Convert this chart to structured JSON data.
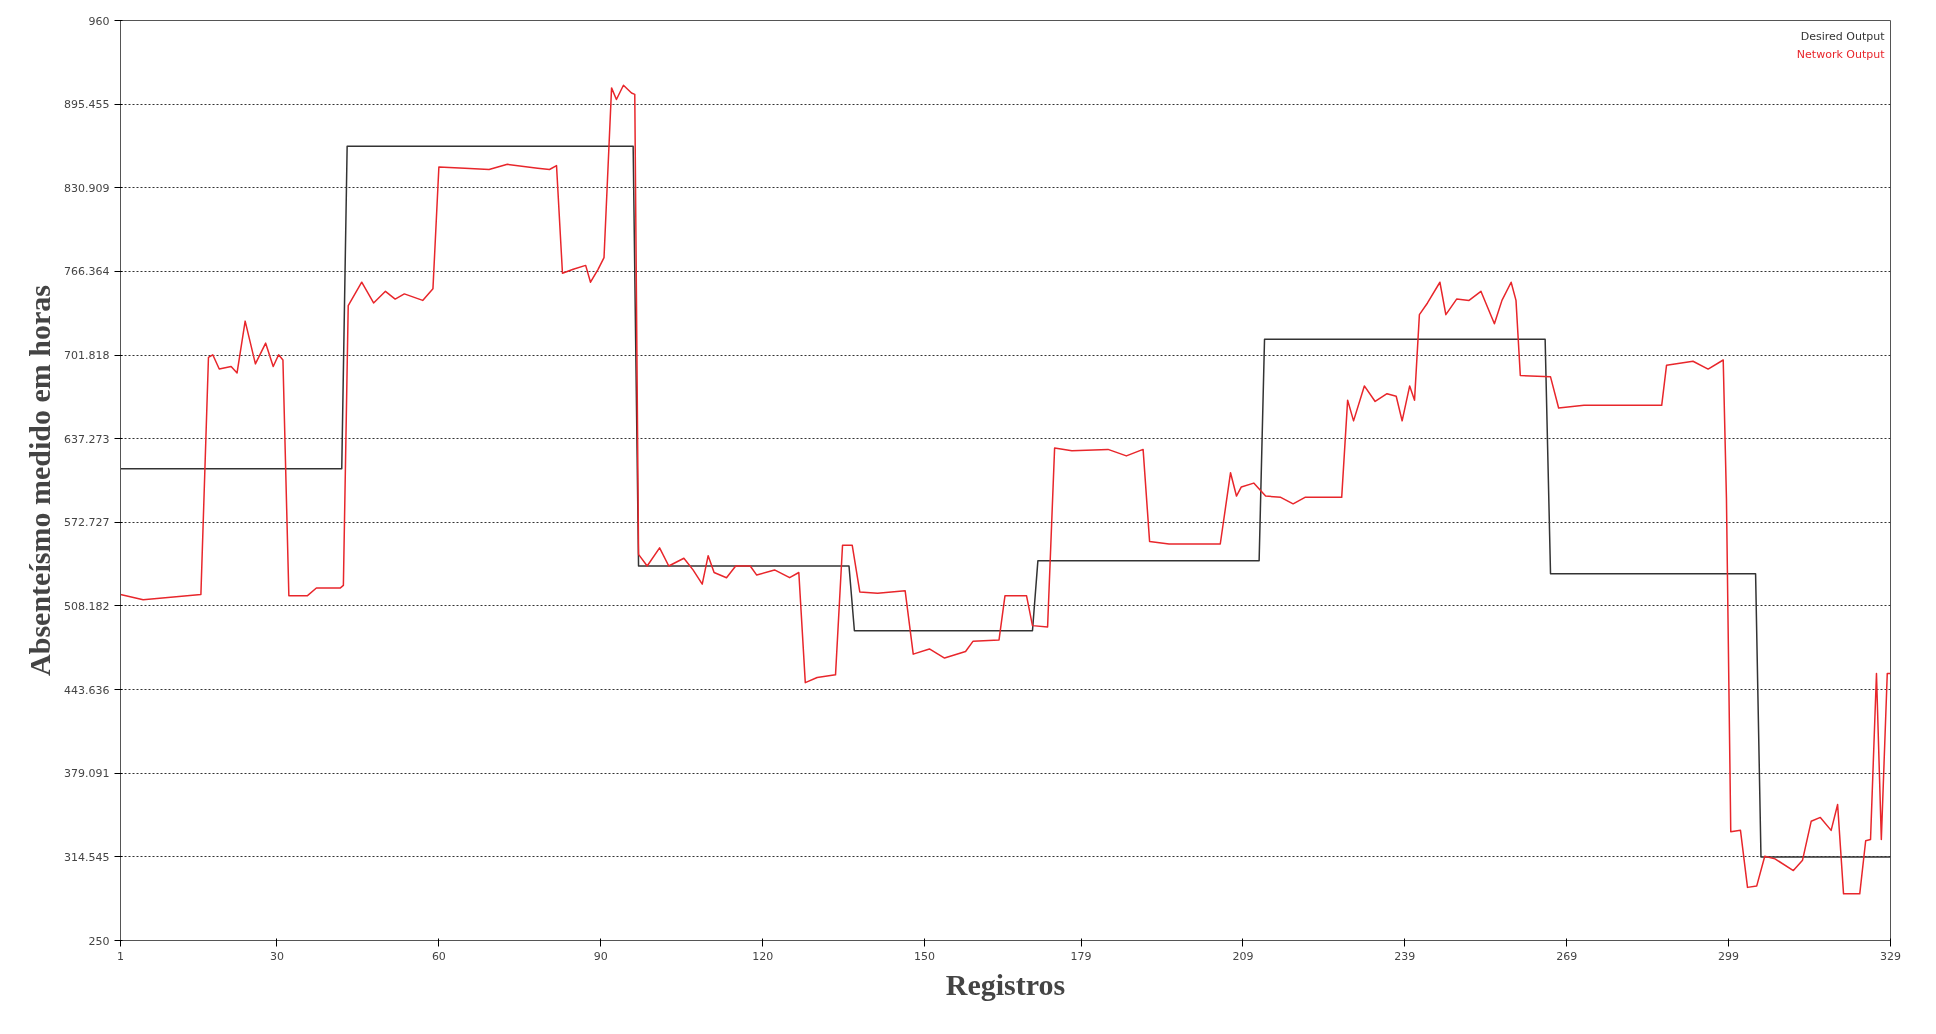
{
  "chart_data": {
    "type": "line",
    "xlabel": "Registros",
    "ylabel": "Absenteísmo medido em horas",
    "xlim": [
      1,
      329
    ],
    "ylim": [
      250,
      960
    ],
    "xticks": [
      1,
      30,
      60,
      90,
      120,
      150,
      179,
      209,
      239,
      269,
      299,
      329
    ],
    "yticks": [
      250,
      314.545,
      379.091,
      443.636,
      508.182,
      572.727,
      637.273,
      701.818,
      766.364,
      830.909,
      895.455,
      960
    ],
    "grid": "y",
    "legend": "top right",
    "marker": "none",
    "line_style": "solid",
    "series": [
      {
        "name": "Desired Output",
        "color": "#333333",
        "x": [
          1,
          42,
          43,
          96,
          97,
          136,
          137,
          170,
          171,
          212,
          213,
          265,
          266,
          304,
          305,
          329
        ],
        "values": [
          614,
          614,
          863,
          863,
          539,
          539,
          489,
          489,
          543,
          543,
          714,
          714,
          533,
          533,
          314.5,
          314.5
        ]
      },
      {
        "name": "Network Output",
        "color": "#e8262b",
        "x": [
          1,
          5.2,
          15.9,
          17.3,
          18.1,
          19.3,
          21.5,
          22.6,
          24.1,
          26,
          27.9,
          29.3,
          30.3,
          31.1,
          32.2,
          35.6,
          37.3,
          41.7,
          42.3,
          43.2,
          45.7,
          47.9,
          50.1,
          51.9,
          53.6,
          57,
          58.9,
          60,
          64.8,
          69.3,
          72.7,
          78.3,
          80.5,
          81.8,
          82.9,
          84.9,
          87.2,
          88.1,
          89.5,
          90.6,
          92,
          92.9,
          94.2,
          95.7,
          96.3,
          97,
          98.6,
          100.9,
          102.6,
          105.4,
          107.1,
          108.8,
          109.9,
          111,
          113.3,
          115,
          117.7,
          118.9,
          122.2,
          125,
          126.7,
          127.9,
          130.1,
          133.5,
          134.8,
          136.6,
          138,
          141.3,
          146.4,
          147.9,
          150.9,
          153.7,
          157.6,
          159,
          163.8,
          164.9,
          168.9,
          170,
          172.8,
          174.1,
          177.3,
          184,
          187.4,
          190.5,
          191.7,
          195.3,
          204.8,
          206.7,
          207.8,
          208.7,
          211,
          213.2,
          216,
          218.3,
          220.5,
          227.3,
          228.4,
          229.5,
          231.5,
          233.5,
          235.7,
          237.4,
          238.5,
          239.9,
          240.8,
          241.7,
          243.2,
          245.5,
          246.6,
          248.6,
          250.9,
          253.1,
          255.6,
          257,
          258.7,
          259.6,
          260.4,
          266,
          267.5,
          272.2,
          281.2,
          286.6,
          287.5,
          292.4,
          295.2,
          298,
          298.6,
          299.4,
          301.2,
          302.5,
          304.2,
          305.7,
          307.6,
          311,
          312.7,
          314.3,
          316,
          318,
          319.2,
          320.3,
          323.3,
          324.4,
          325.3,
          326.4,
          327.3,
          328.4,
          329
        ],
        "values": [
          517,
          513,
          517,
          700,
          702,
          691,
          693,
          688,
          728,
          695,
          711,
          693,
          702,
          698,
          516,
          516,
          522,
          522,
          524,
          740,
          758,
          742,
          751,
          745,
          749,
          744,
          753,
          847,
          846,
          845,
          849,
          846,
          845,
          848,
          765,
          768,
          771,
          758,
          768,
          777,
          908,
          899,
          910,
          904,
          903,
          548,
          539,
          553,
          539,
          545,
          536,
          525,
          547,
          534,
          530,
          539,
          539,
          532,
          536,
          530,
          534,
          449,
          453,
          455,
          555,
          555,
          519,
          518,
          520,
          471,
          475,
          468,
          473,
          481,
          482,
          516,
          516,
          493,
          492,
          630,
          628,
          629,
          624,
          629,
          558,
          556,
          556,
          611,
          593,
          600,
          603,
          593,
          592,
          587,
          592,
          592,
          667,
          651,
          678,
          666,
          672,
          670,
          651,
          678,
          667,
          733,
          742,
          758,
          733,
          745,
          744,
          751,
          726,
          744,
          758,
          744,
          686,
          685,
          661,
          663,
          663,
          663,
          694,
          697,
          691,
          698,
          591,
          334,
          335,
          291,
          292,
          315,
          313,
          304,
          312,
          342,
          345,
          335,
          355,
          286,
          286,
          327,
          328,
          456,
          328,
          456,
          456
        ]
      }
    ]
  }
}
